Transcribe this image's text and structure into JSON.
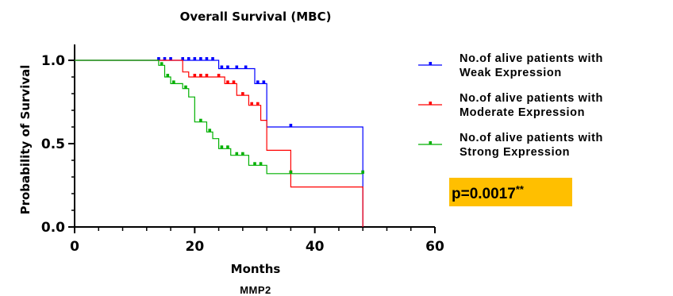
{
  "chart_data": {
    "type": "line",
    "title": "Overall Survival (MBC)",
    "xlabel": "Months",
    "ylabel": "Probability of Survival",
    "caption": "MMP2",
    "xlim": [
      0,
      60
    ],
    "ylim": [
      0,
      1.05
    ],
    "xticks": [
      "0",
      "20",
      "40",
      "60"
    ],
    "yticks": [
      "0.0",
      "0.5",
      "1.0"
    ],
    "annotation": {
      "text": "p=0.0017",
      "suffix": "**",
      "color": "#ffbf00"
    },
    "grid": false,
    "legend_position": "right",
    "series": [
      {
        "name_line1": "No.of alive patients with",
        "name_line2": "Weak Expression",
        "color": "#0000ff",
        "steps": [
          [
            0,
            1.0
          ],
          [
            24,
            0.95
          ],
          [
            30,
            0.86
          ],
          [
            32,
            0.6
          ],
          [
            48,
            0.0
          ]
        ],
        "censors": [
          [
            14,
            1.0
          ],
          [
            15,
            1.0
          ],
          [
            16,
            1.0
          ],
          [
            18,
            1.0
          ],
          [
            19,
            1.0
          ],
          [
            20,
            1.0
          ],
          [
            21,
            1.0
          ],
          [
            22,
            1.0
          ],
          [
            23,
            1.0
          ],
          [
            24.5,
            0.95
          ],
          [
            25.5,
            0.95
          ],
          [
            27,
            0.95
          ],
          [
            28.5,
            0.95
          ],
          [
            30.5,
            0.86
          ],
          [
            31.5,
            0.86
          ],
          [
            36,
            0.6
          ],
          [
            48,
            0.32
          ]
        ]
      },
      {
        "name_line1": "No.of alive patients with",
        "name_line2": "Moderate Expression",
        "color": "#ff0000",
        "steps": [
          [
            0,
            1.0
          ],
          [
            18,
            0.93
          ],
          [
            19,
            0.9
          ],
          [
            25,
            0.86
          ],
          [
            27,
            0.79
          ],
          [
            29,
            0.73
          ],
          [
            31,
            0.64
          ],
          [
            32,
            0.46
          ],
          [
            36,
            0.24
          ],
          [
            48,
            0.0
          ]
        ],
        "censors": [
          [
            20,
            0.9
          ],
          [
            21,
            0.9
          ],
          [
            22,
            0.9
          ],
          [
            24,
            0.9
          ],
          [
            25.5,
            0.86
          ],
          [
            26.5,
            0.86
          ],
          [
            28,
            0.79
          ],
          [
            29.5,
            0.73
          ],
          [
            30.5,
            0.73
          ],
          [
            36,
            0.32
          ]
        ]
      },
      {
        "name_line1": "No.of alive patients with",
        "name_line2": "Strong Expression",
        "color": "#00b000",
        "steps": [
          [
            0,
            1.0
          ],
          [
            14,
            0.97
          ],
          [
            15,
            0.9
          ],
          [
            16,
            0.86
          ],
          [
            18,
            0.83
          ],
          [
            19,
            0.78
          ],
          [
            20,
            0.63
          ],
          [
            22,
            0.57
          ],
          [
            23,
            0.53
          ],
          [
            24,
            0.47
          ],
          [
            26,
            0.43
          ],
          [
            29,
            0.37
          ],
          [
            32,
            0.32
          ],
          [
            48,
            0.32
          ]
        ],
        "censors": [
          [
            14.5,
            0.97
          ],
          [
            15.5,
            0.9
          ],
          [
            16.5,
            0.86
          ],
          [
            18.5,
            0.83
          ],
          [
            21,
            0.63
          ],
          [
            22.5,
            0.57
          ],
          [
            24.5,
            0.47
          ],
          [
            25.5,
            0.47
          ],
          [
            27,
            0.43
          ],
          [
            28,
            0.43
          ],
          [
            30,
            0.37
          ],
          [
            31,
            0.37
          ],
          [
            36,
            0.32
          ],
          [
            48,
            0.32
          ]
        ]
      }
    ]
  }
}
